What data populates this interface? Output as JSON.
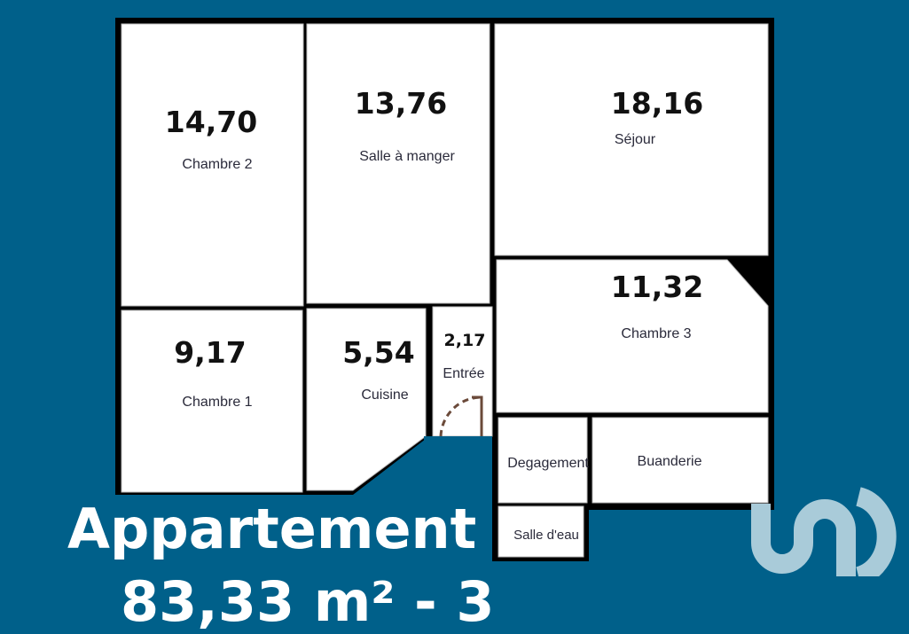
{
  "rooms": [
    {
      "name": "Chambre 2",
      "area": "14,70"
    },
    {
      "name": "Salle à manger",
      "area": "13,76"
    },
    {
      "name": "Séjour",
      "area": "18,16"
    },
    {
      "name": "Chambre 3",
      "area": "11,32"
    },
    {
      "name": "Chambre 1",
      "area": "9,17"
    },
    {
      "name": "Cuisine",
      "area": "5,54"
    },
    {
      "name": "Entrée",
      "area": "2,17"
    },
    {
      "name": "Degagement"
    },
    {
      "name": "Buanderie"
    },
    {
      "name": "Salle d'eau"
    }
  ],
  "title": {
    "line1": "Appartement",
    "line2": "83,33 m² - 3"
  },
  "colors": {
    "background": "#00608a",
    "walls": "#000000",
    "rooms": "#ffffff",
    "door": "#6b4a3a",
    "logo": "#a9cbd9"
  },
  "icons": {
    "logo": "brand-logo-icon",
    "door": "door-swing-icon"
  }
}
